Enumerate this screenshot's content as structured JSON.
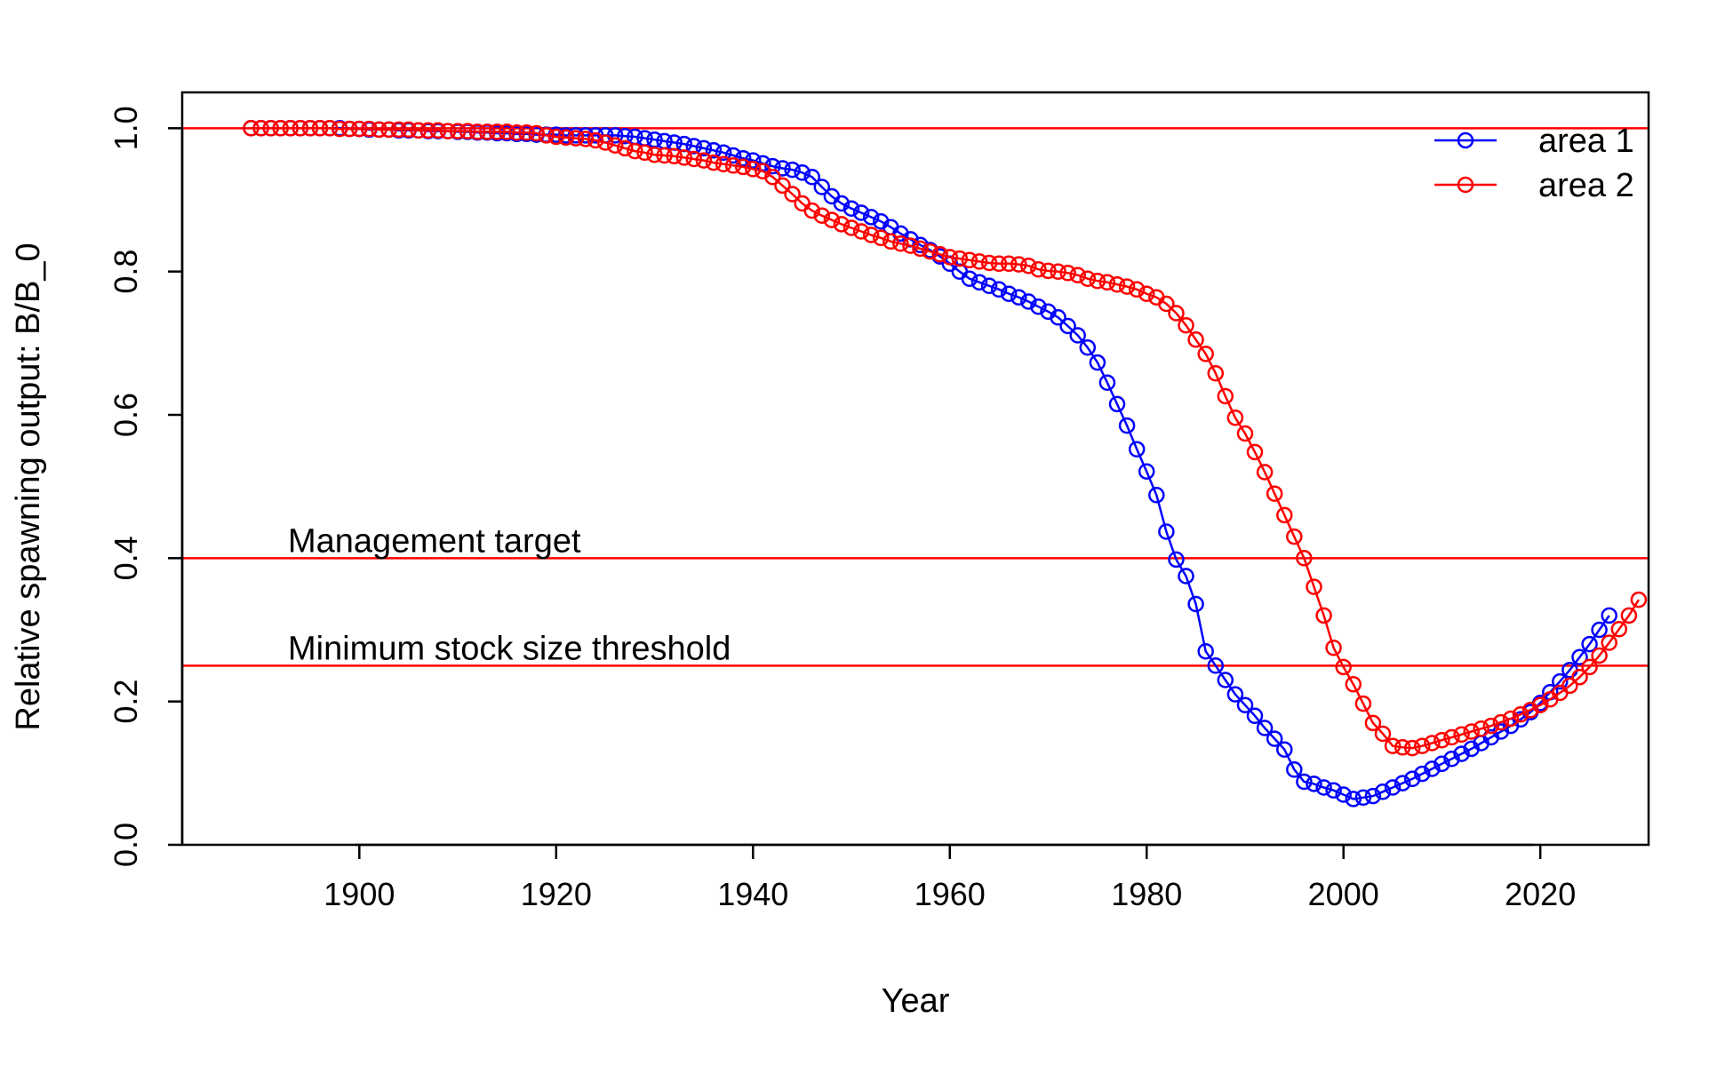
{
  "chart_data": {
    "type": "line",
    "title": "",
    "xlabel": "Year",
    "ylabel": "Relative spawning output: B/B_0",
    "xlim": [
      1882,
      2031
    ],
    "ylim": [
      0,
      1.05
    ],
    "xticks": [
      1900,
      1920,
      1940,
      1960,
      1980,
      2000,
      2020
    ],
    "yticks": [
      "0.0",
      "0.2",
      "0.4",
      "0.6",
      "0.8",
      "1.0"
    ],
    "grid": false,
    "legend": "top-right",
    "reference_lines": [
      {
        "y": 1.0,
        "label": "",
        "color": "#ff0000"
      },
      {
        "y": 0.4,
        "label": "Management target",
        "color": "#ff0000"
      },
      {
        "y": 0.25,
        "label": "Minimum stock size threshold",
        "color": "#ff0000"
      }
    ],
    "x_start": 1889,
    "series": [
      {
        "name": "area 1",
        "color": "#0000ff",
        "values": [
          1.0,
          1.0,
          1.0,
          1.0,
          1.0,
          1.0,
          1.0,
          1.0,
          1.0,
          1.0,
          0.999,
          0.999,
          0.998,
          0.998,
          0.998,
          0.997,
          0.997,
          0.997,
          0.996,
          0.996,
          0.996,
          0.995,
          0.995,
          0.994,
          0.994,
          0.993,
          0.993,
          0.992,
          0.992,
          0.991,
          0.991,
          0.991,
          0.99,
          0.99,
          0.99,
          0.99,
          0.99,
          0.99,
          0.989,
          0.988,
          0.986,
          0.984,
          0.982,
          0.98,
          0.978,
          0.975,
          0.972,
          0.969,
          0.966,
          0.962,
          0.958,
          0.955,
          0.951,
          0.947,
          0.944,
          0.942,
          0.938,
          0.932,
          0.918,
          0.905,
          0.895,
          0.888,
          0.882,
          0.876,
          0.87,
          0.862,
          0.853,
          0.845,
          0.837,
          0.83,
          0.821,
          0.811,
          0.8,
          0.79,
          0.785,
          0.78,
          0.775,
          0.769,
          0.764,
          0.758,
          0.751,
          0.744,
          0.736,
          0.724,
          0.711,
          0.694,
          0.673,
          0.645,
          0.615,
          0.585,
          0.552,
          0.521,
          0.488,
          0.437,
          0.398,
          0.375,
          0.336,
          0.27,
          0.25,
          0.23,
          0.21,
          0.195,
          0.18,
          0.163,
          0.148,
          0.133,
          0.105,
          0.088,
          0.085,
          0.08,
          0.076,
          0.07,
          0.064,
          0.066,
          0.068,
          0.074,
          0.08,
          0.086,
          0.092,
          0.099,
          0.106,
          0.113,
          0.12,
          0.127,
          0.134,
          0.142,
          0.15,
          0.158,
          0.166,
          0.175,
          0.185,
          0.198,
          0.213,
          0.228,
          0.244,
          0.262,
          0.28,
          0.3,
          0.32
        ]
      },
      {
        "name": "area 2",
        "color": "#ff0000",
        "values": [
          1.0,
          1.0,
          1.0,
          1.0,
          1.0,
          1.0,
          1.0,
          1.0,
          1.0,
          0.999,
          0.999,
          0.999,
          0.999,
          0.998,
          0.998,
          0.998,
          0.998,
          0.997,
          0.997,
          0.997,
          0.996,
          0.996,
          0.996,
          0.995,
          0.995,
          0.995,
          0.995,
          0.994,
          0.994,
          0.993,
          0.99,
          0.988,
          0.987,
          0.986,
          0.985,
          0.983,
          0.98,
          0.976,
          0.972,
          0.968,
          0.966,
          0.963,
          0.962,
          0.961,
          0.959,
          0.957,
          0.955,
          0.952,
          0.95,
          0.948,
          0.946,
          0.943,
          0.94,
          0.932,
          0.92,
          0.908,
          0.895,
          0.885,
          0.878,
          0.872,
          0.866,
          0.861,
          0.856,
          0.851,
          0.847,
          0.842,
          0.839,
          0.836,
          0.832,
          0.828,
          0.824,
          0.82,
          0.818,
          0.816,
          0.814,
          0.812,
          0.811,
          0.811,
          0.81,
          0.808,
          0.803,
          0.801,
          0.8,
          0.798,
          0.795,
          0.79,
          0.787,
          0.785,
          0.782,
          0.779,
          0.775,
          0.769,
          0.764,
          0.755,
          0.742,
          0.725,
          0.705,
          0.685,
          0.658,
          0.626,
          0.596,
          0.574,
          0.548,
          0.52,
          0.49,
          0.46,
          0.43,
          0.4,
          0.36,
          0.32,
          0.275,
          0.248,
          0.224,
          0.197,
          0.17,
          0.155,
          0.138,
          0.136,
          0.135,
          0.138,
          0.142,
          0.146,
          0.15,
          0.154,
          0.158,
          0.162,
          0.166,
          0.171,
          0.176,
          0.182,
          0.188,
          0.195,
          0.203,
          0.212,
          0.222,
          0.234,
          0.248,
          0.264,
          0.282,
          0.301,
          0.32,
          0.342
        ]
      }
    ]
  }
}
